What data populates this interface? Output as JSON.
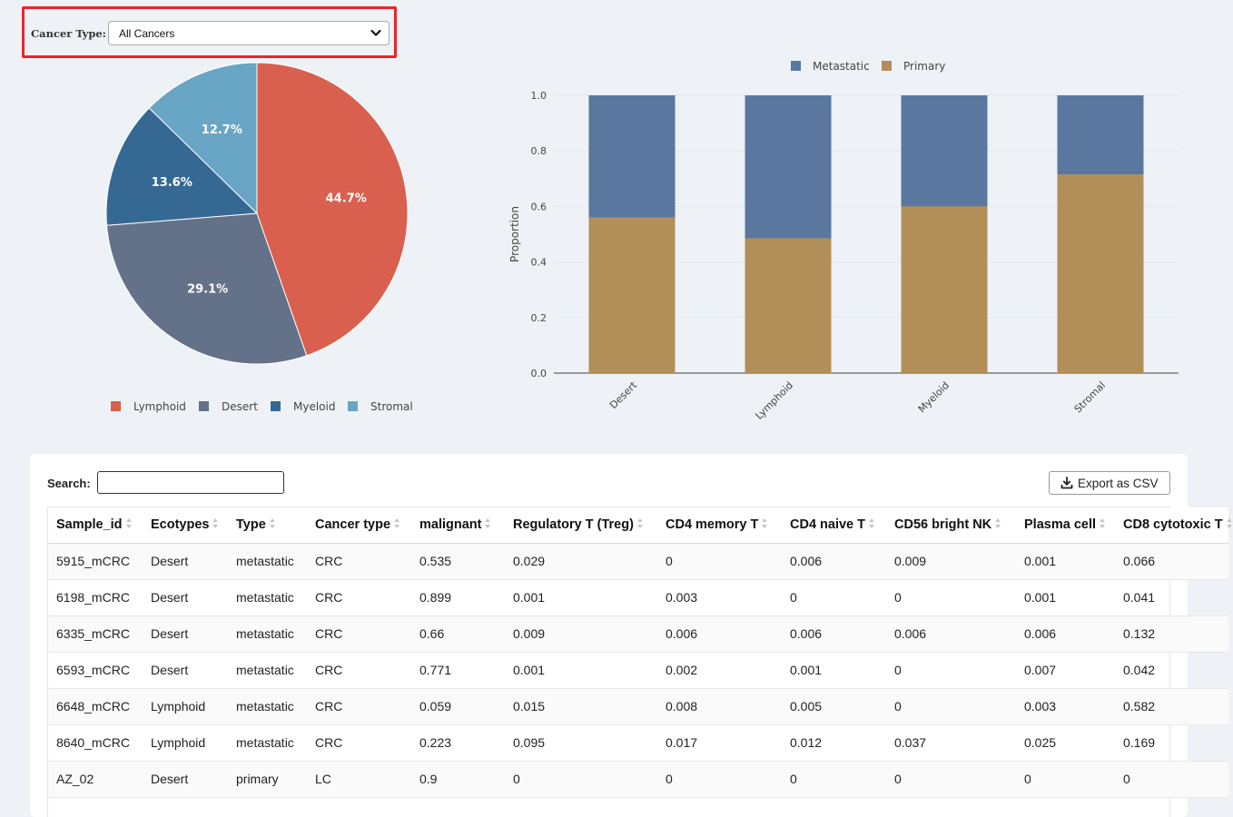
{
  "filter": {
    "label": "Cancer Type:",
    "selected": "All Cancers"
  },
  "colors": {
    "Lymphoid": "#d95f4e",
    "Desert": "#637289",
    "Myeloid": "#356994",
    "Stromal": "#69a5c4",
    "Metastatic": "#59779f",
    "Primary": "#b28e58"
  },
  "chart_data": [
    {
      "type": "pie",
      "labels": [
        "Lymphoid",
        "Desert",
        "Myeloid",
        "Stromal"
      ],
      "values": [
        44.7,
        29.1,
        13.6,
        12.7
      ],
      "value_labels": [
        "44.7%",
        "29.1%",
        "13.6%",
        "12.7%"
      ],
      "legend": [
        "Lymphoid",
        "Desert",
        "Myeloid",
        "Stromal"
      ],
      "legend_position": "bottom"
    },
    {
      "type": "bar",
      "stacked": true,
      "categories": [
        "Desert",
        "Lymphoid",
        "Myeloid",
        "Stromal"
      ],
      "series": [
        {
          "name": "Primary",
          "values": [
            0.56,
            0.485,
            0.6,
            0.715
          ]
        },
        {
          "name": "Metastatic",
          "values": [
            0.44,
            0.515,
            0.4,
            0.285
          ]
        }
      ],
      "legend": [
        "Metastatic",
        "Primary"
      ],
      "legend_position": "top",
      "ylabel": "Proportion",
      "xlabel": "",
      "ylim": [
        0,
        1.0
      ],
      "yticks": [
        "0.0",
        "0.2",
        "0.4",
        "0.6",
        "0.8",
        "1.0"
      ],
      "grid": true
    }
  ],
  "table": {
    "search_label": "Search:",
    "export_label": "Export as CSV",
    "columns": [
      "Sample_id",
      "Ecotypes",
      "Type",
      "Cancer type",
      "malignant",
      "Regulatory T (Treg)",
      "CD4 memory T",
      "CD4 naive T",
      "CD56 bright NK",
      "Plasma cell",
      "CD8 cytotoxic T"
    ],
    "rows": [
      [
        "5915_mCRC",
        "Desert",
        "metastatic",
        "CRC",
        "0.535",
        "0.029",
        "0",
        "0.006",
        "0.009",
        "0.001",
        "0.066"
      ],
      [
        "6198_mCRC",
        "Desert",
        "metastatic",
        "CRC",
        "0.899",
        "0.001",
        "0.003",
        "0",
        "0",
        "0.001",
        "0.041"
      ],
      [
        "6335_mCRC",
        "Desert",
        "metastatic",
        "CRC",
        "0.66",
        "0.009",
        "0.006",
        "0.006",
        "0.006",
        "0.006",
        "0.132"
      ],
      [
        "6593_mCRC",
        "Desert",
        "metastatic",
        "CRC",
        "0.771",
        "0.001",
        "0.002",
        "0.001",
        "0",
        "0.007",
        "0.042"
      ],
      [
        "6648_mCRC",
        "Lymphoid",
        "metastatic",
        "CRC",
        "0.059",
        "0.015",
        "0.008",
        "0.005",
        "0",
        "0.003",
        "0.582"
      ],
      [
        "8640_mCRC",
        "Lymphoid",
        "metastatic",
        "CRC",
        "0.223",
        "0.095",
        "0.017",
        "0.012",
        "0.037",
        "0.025",
        "0.169"
      ],
      [
        "AZ_02",
        "Desert",
        "primary",
        "LC",
        "0.9",
        "0",
        "0",
        "0",
        "0",
        "0",
        "0"
      ]
    ]
  }
}
